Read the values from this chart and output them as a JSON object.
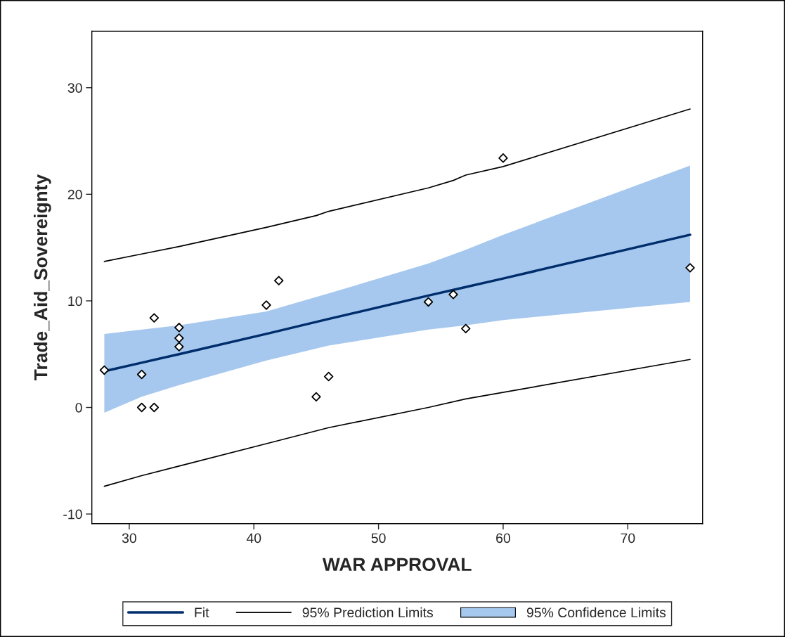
{
  "chart_data": {
    "type": "scatter",
    "xlabel": "WAR APPROVAL",
    "ylabel": "Trade_Aid_Sovereignty",
    "xlim": [
      27,
      76
    ],
    "ylim": [
      -10.9,
      35.3
    ],
    "xticks": [
      30,
      40,
      50,
      60,
      70
    ],
    "yticks": [
      -10,
      0,
      10,
      20,
      30
    ],
    "grid": false,
    "legend": "bottom",
    "annotations": [
      "95% Confidence Limits"
    ],
    "series": [
      {
        "type": "line",
        "name": "Fit",
        "color": "#002d6b",
        "x": [
          28,
          31,
          34,
          41,
          46,
          54,
          57,
          60,
          75
        ],
        "values": [
          3.4,
          4.2,
          5.0,
          6.9,
          8.3,
          10.5,
          11.3,
          12.1,
          16.2
        ],
        "lower": [
          -0.5,
          1.0,
          2.1,
          4.4,
          5.8,
          7.3,
          7.7,
          8.2,
          9.9
        ],
        "upper": [
          6.9,
          7.3,
          7.7,
          9.0,
          10.7,
          13.5,
          14.8,
          16.2,
          22.7
        ]
      },
      {
        "type": "line",
        "name": "95% Prediction Limits",
        "color": "#000000",
        "x": [
          28,
          31,
          34,
          41,
          45,
          46,
          54,
          56,
          57,
          60,
          75
        ],
        "values": [
          13.7,
          14.4,
          15.1,
          16.9,
          18.0,
          18.4,
          20.6,
          21.3,
          21.8,
          22.6,
          28.0
        ]
      },
      {
        "type": "line",
        "color": "#000000",
        "x": [
          28,
          31,
          34,
          42,
          46,
          54,
          57,
          75
        ],
        "values": [
          -7.4,
          -6.4,
          -5.5,
          -3.1,
          -1.9,
          0.0,
          0.8,
          4.5
        ]
      },
      {
        "color": "#000000",
        "marker": "diamond",
        "x": [
          28,
          31,
          31,
          32,
          32,
          34,
          34,
          34,
          41,
          42,
          45,
          46,
          54,
          56,
          57,
          60,
          75
        ],
        "values": [
          3.5,
          3.1,
          0.0,
          8.4,
          0.0,
          7.5,
          6.5,
          5.7,
          9.6,
          11.9,
          1.0,
          2.9,
          9.9,
          10.6,
          7.4,
          23.4,
          13.1
        ]
      }
    ]
  }
}
